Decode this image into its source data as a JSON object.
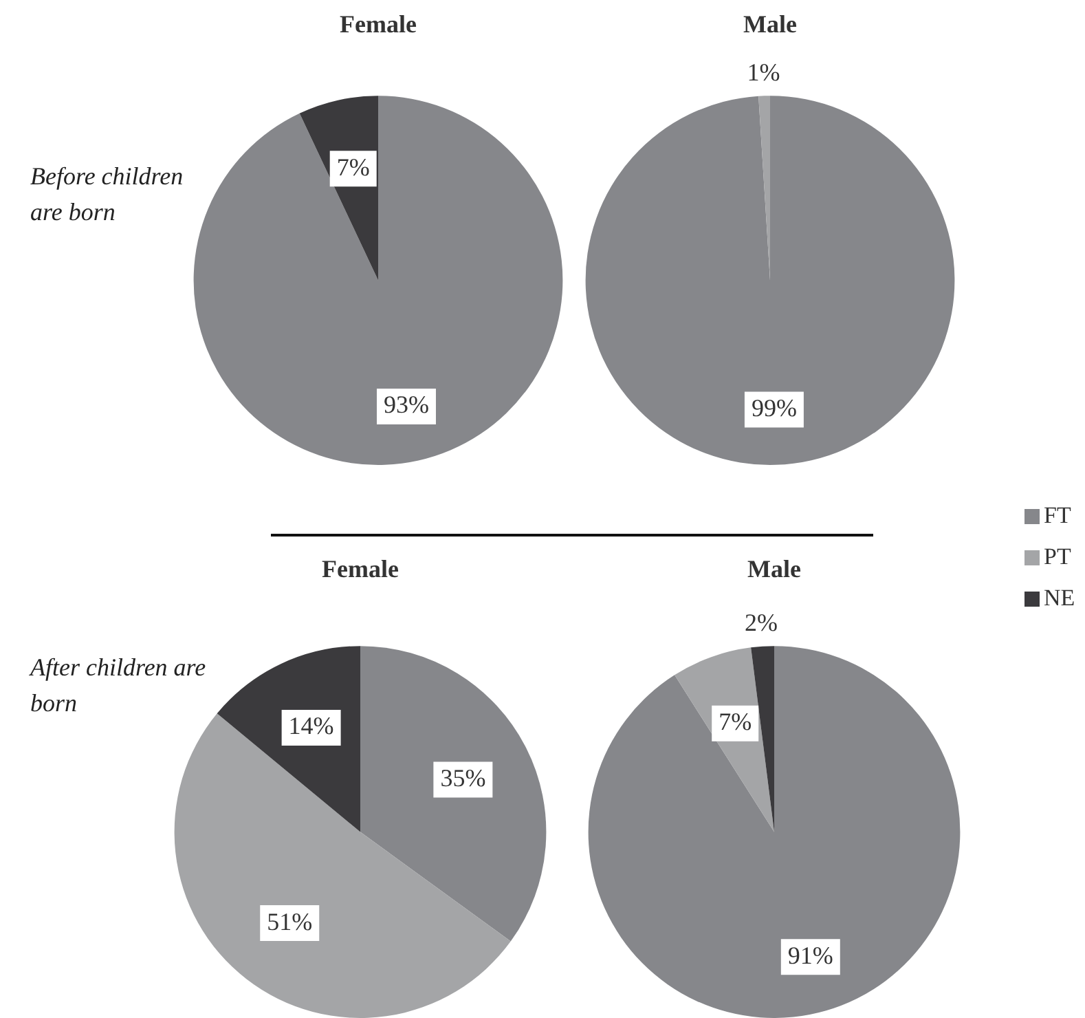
{
  "chart_data": [
    {
      "type": "pie",
      "title": "Female",
      "categories": [
        "FT",
        "PT",
        "NE"
      ],
      "values": [
        93,
        0,
        7
      ],
      "value_labels": [
        "93%",
        null,
        "7%"
      ],
      "colors": [
        "#86878b",
        "#a4a5a7",
        "#3b3a3d"
      ],
      "legend": "right",
      "annotations": [
        "Before children are born"
      ]
    },
    {
      "type": "pie",
      "title": "Male",
      "categories": [
        null,
        null,
        null
      ],
      "values": [
        99,
        1,
        0
      ],
      "value_labels": [
        "99%",
        "1%",
        null
      ],
      "colors": [
        "#86878b",
        "#a4a5a7",
        "#3b3a3d"
      ]
    },
    {
      "type": "pie",
      "title": "Female",
      "categories": [
        null,
        null,
        null
      ],
      "values": [
        35,
        51,
        14
      ],
      "value_labels": [
        "35%",
        "51%",
        "14%"
      ],
      "colors": [
        "#86878b",
        "#a4a5a7",
        "#3b3a3d"
      ],
      "annotations": [
        "After children are born"
      ]
    },
    {
      "type": "pie",
      "title": "Male",
      "categories": [
        null,
        null,
        null
      ],
      "values": [
        91,
        7,
        2
      ],
      "value_labels": [
        "91%",
        "7%",
        "2%"
      ],
      "colors": [
        "#86878b",
        "#a4a5a7",
        "#3b3a3d"
      ]
    }
  ]
}
